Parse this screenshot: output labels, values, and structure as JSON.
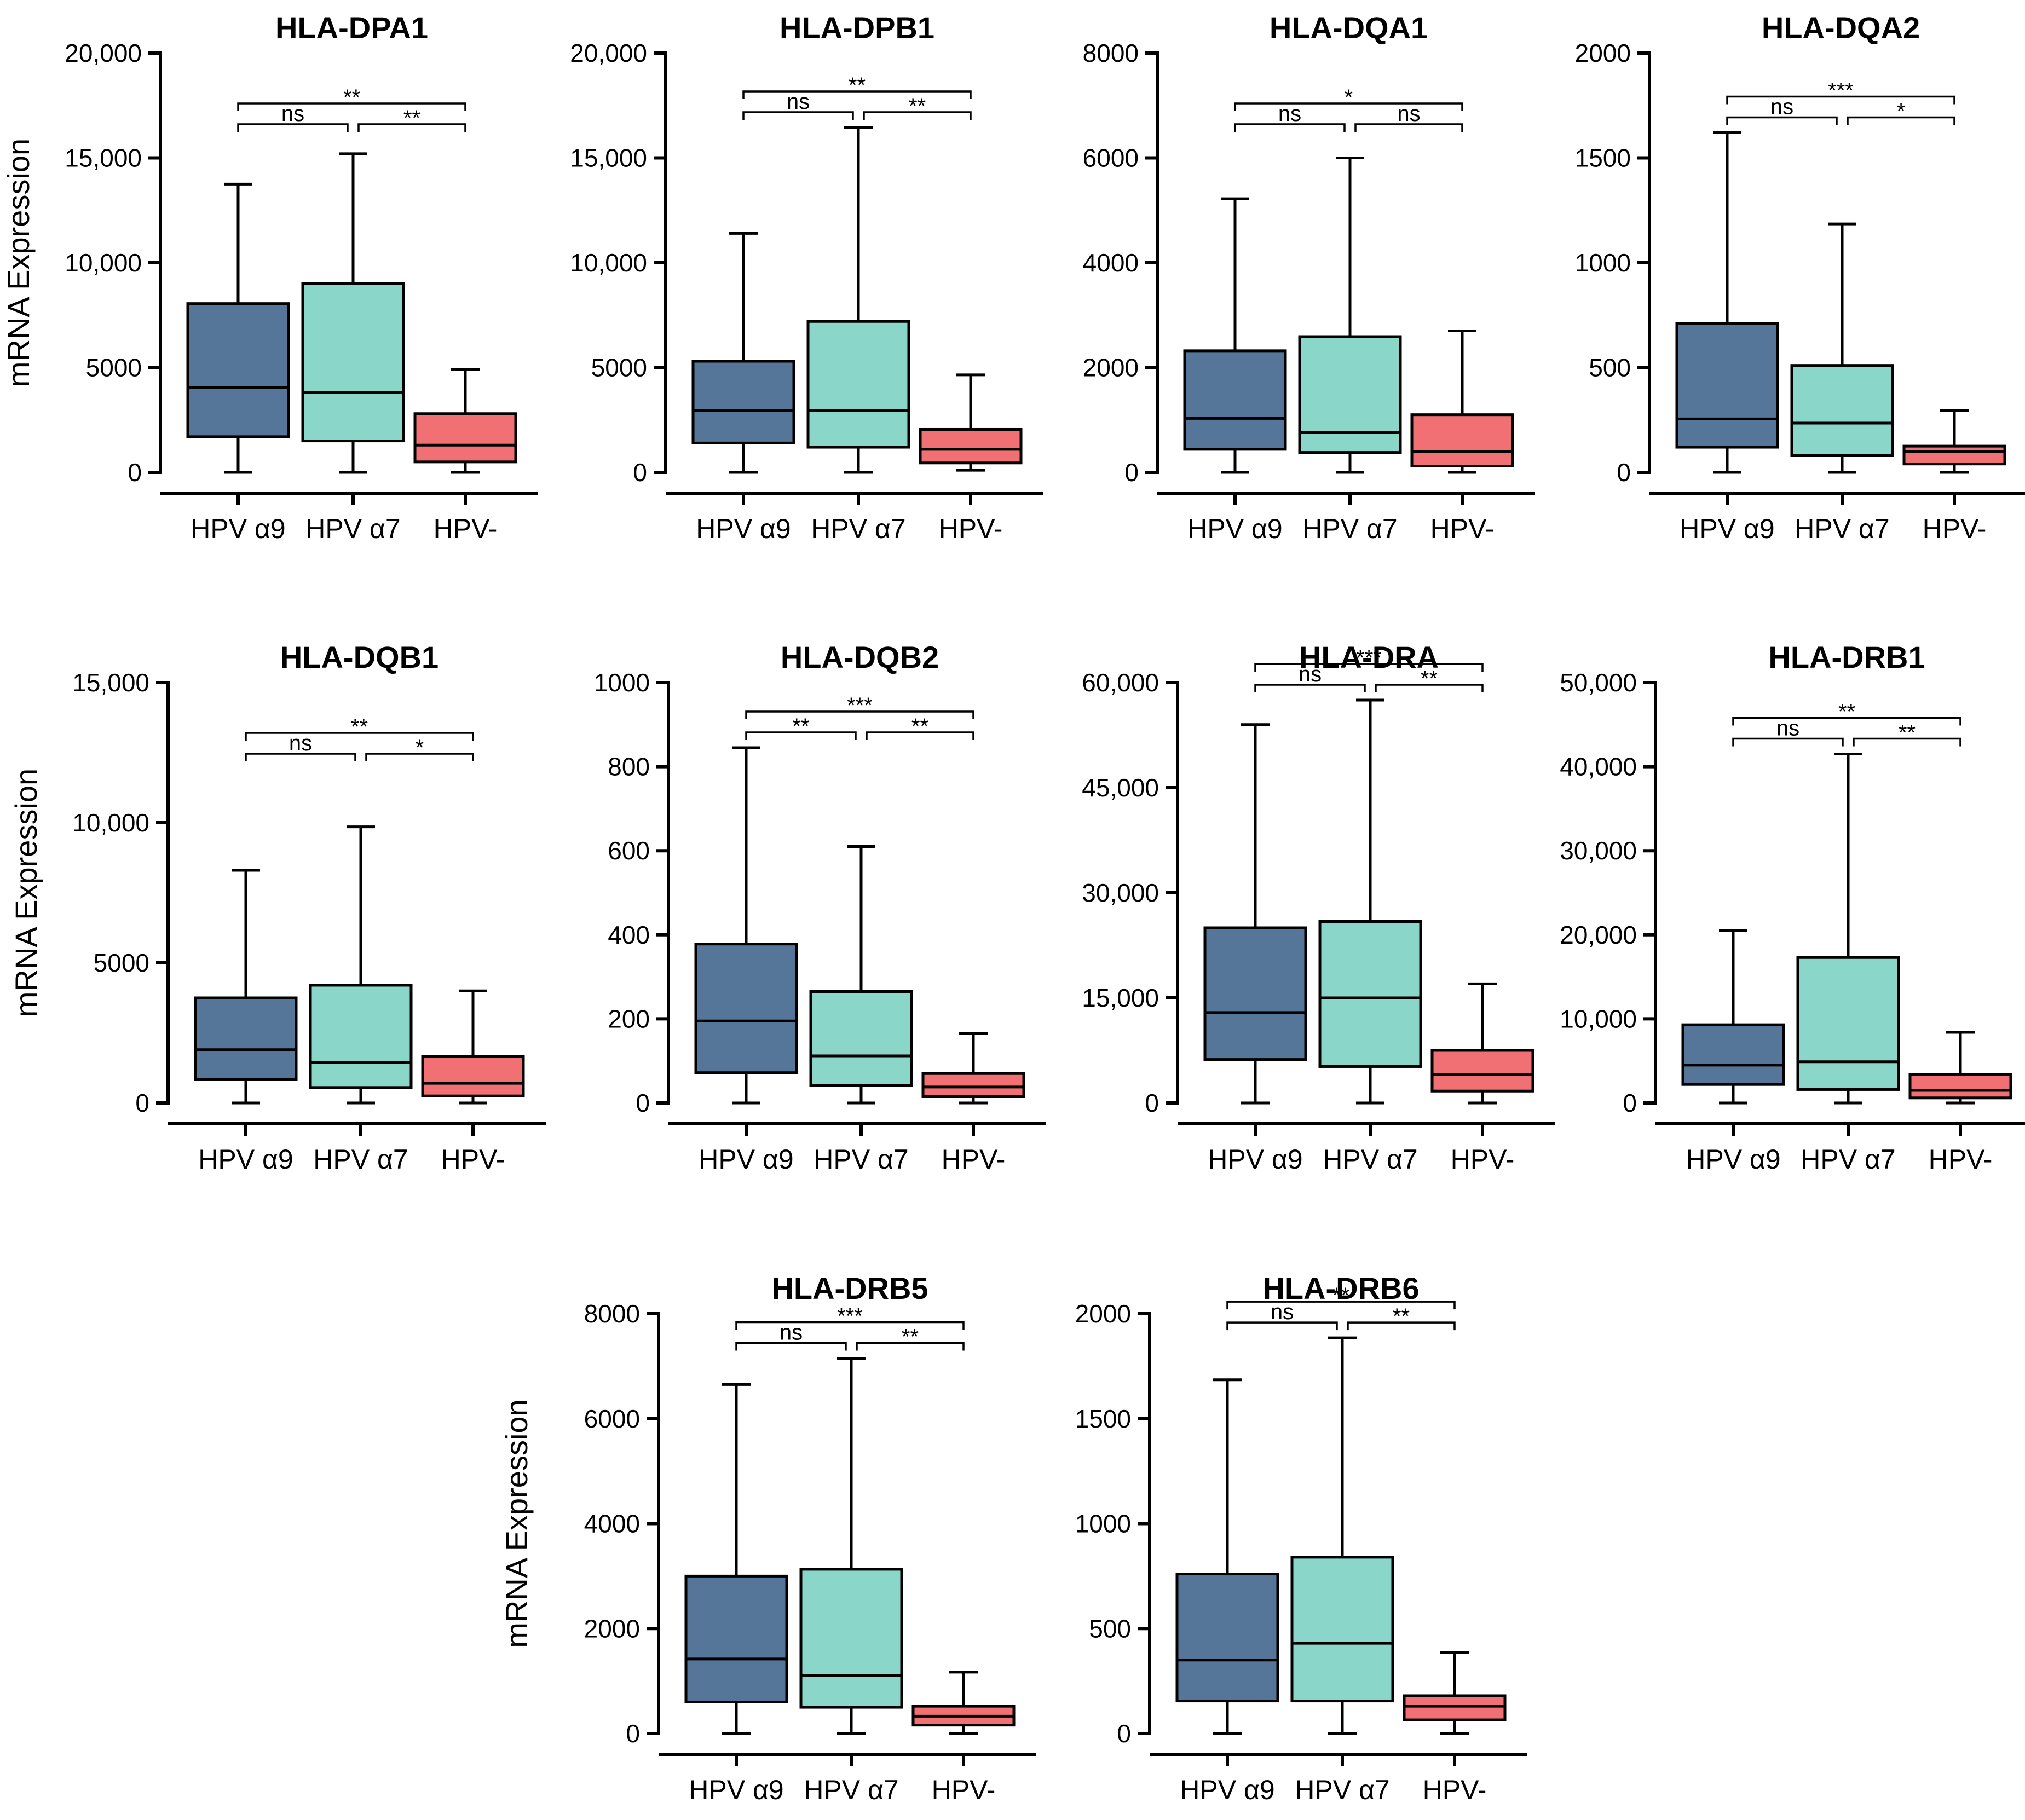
{
  "figure": {
    "ylabel": "mRNA Expression",
    "colors": {
      "HPV α9": "#557699",
      "HPV α7": "#8ad6c8",
      "HPV-": "#f07074"
    }
  },
  "chart_data": [
    {
      "type": "box",
      "title": "HLA-DPA1",
      "ylabel": "mRNA Expression",
      "categories": [
        "HPV α9",
        "HPV α7",
        "HPV-"
      ],
      "ylim": [
        0,
        20000
      ],
      "yticks": [
        0,
        5000,
        10000,
        15000,
        20000
      ],
      "ytick_labels": [
        "0",
        "5000",
        "10,000",
        "15,000",
        "20,000"
      ],
      "boxes": [
        {
          "min": 0,
          "q1": 1700,
          "median": 4050,
          "q3": 8050,
          "max": 13750
        },
        {
          "min": 0,
          "q1": 1500,
          "median": 3800,
          "q3": 9000,
          "max": 15200
        },
        {
          "min": 0,
          "q1": 500,
          "median": 1300,
          "q3": 2800,
          "max": 4900
        }
      ],
      "brackets": [
        {
          "from": 0,
          "to": 1,
          "label": "ns",
          "level": 0
        },
        {
          "from": 1,
          "to": 2,
          "label": "**",
          "level": 0
        },
        {
          "from": 0,
          "to": 2,
          "label": "**",
          "level": 1
        }
      ]
    },
    {
      "type": "box",
      "title": "HLA-DPB1",
      "ylabel": "",
      "categories": [
        "HPV α9",
        "HPV α7",
        "HPV-"
      ],
      "ylim": [
        0,
        20000
      ],
      "yticks": [
        0,
        5000,
        10000,
        15000,
        20000
      ],
      "ytick_labels": [
        "0",
        "5000",
        "10,000",
        "15,000",
        "20,000"
      ],
      "boxes": [
        {
          "min": 0,
          "q1": 1400,
          "median": 2950,
          "q3": 5300,
          "max": 11400
        },
        {
          "min": 0,
          "q1": 1200,
          "median": 2950,
          "q3": 7200,
          "max": 16450
        },
        {
          "min": 100,
          "q1": 450,
          "median": 1100,
          "q3": 2050,
          "max": 4650
        }
      ],
      "brackets": [
        {
          "from": 0,
          "to": 1,
          "label": "ns",
          "level": 0
        },
        {
          "from": 1,
          "to": 2,
          "label": "**",
          "level": 0
        },
        {
          "from": 0,
          "to": 2,
          "label": "**",
          "level": 1
        }
      ]
    },
    {
      "type": "box",
      "title": "HLA-DQA1",
      "ylabel": "",
      "categories": [
        "HPV α9",
        "HPV α7",
        "HPV-"
      ],
      "ylim": [
        0,
        8000
      ],
      "yticks": [
        0,
        2000,
        4000,
        6000,
        8000
      ],
      "ytick_labels": [
        "0",
        "2000",
        "4000",
        "6000",
        "8000"
      ],
      "boxes": [
        {
          "min": 0,
          "q1": 440,
          "median": 1030,
          "q3": 2320,
          "max": 5220
        },
        {
          "min": 0,
          "q1": 380,
          "median": 760,
          "q3": 2590,
          "max": 6000
        },
        {
          "min": 0,
          "q1": 120,
          "median": 400,
          "q3": 1100,
          "max": 2700
        }
      ],
      "brackets": [
        {
          "from": 0,
          "to": 1,
          "label": "ns",
          "level": 0
        },
        {
          "from": 1,
          "to": 2,
          "label": "ns",
          "level": 0
        },
        {
          "from": 0,
          "to": 2,
          "label": "*",
          "level": 1
        }
      ]
    },
    {
      "type": "box",
      "title": "HLA-DQA2",
      "ylabel": "",
      "categories": [
        "HPV α9",
        "HPV α7",
        "HPV-"
      ],
      "ylim": [
        0,
        2000
      ],
      "yticks": [
        0,
        500,
        1000,
        1500,
        2000
      ],
      "ytick_labels": [
        "0",
        "500",
        "1000",
        "1500",
        "2000"
      ],
      "boxes": [
        {
          "min": 0,
          "q1": 120,
          "median": 255,
          "q3": 710,
          "max": 1620
        },
        {
          "min": 0,
          "q1": 80,
          "median": 235,
          "q3": 510,
          "max": 1185
        },
        {
          "min": 0,
          "q1": 40,
          "median": 100,
          "q3": 125,
          "max": 295
        }
      ],
      "brackets": [
        {
          "from": 0,
          "to": 1,
          "label": "ns",
          "level": 0
        },
        {
          "from": 1,
          "to": 2,
          "label": "*",
          "level": 0
        },
        {
          "from": 0,
          "to": 2,
          "label": "***",
          "level": 1
        }
      ]
    },
    {
      "type": "box",
      "title": "HLA-DQB1",
      "ylabel": "mRNA Expression",
      "categories": [
        "HPV α9",
        "HPV α7",
        "HPV-"
      ],
      "ylim": [
        0,
        15000
      ],
      "yticks": [
        0,
        5000,
        10000,
        15000
      ],
      "ytick_labels": [
        "0",
        "5000",
        "10,000",
        "15,000"
      ],
      "boxes": [
        {
          "min": 0,
          "q1": 850,
          "median": 1900,
          "q3": 3750,
          "max": 8300
        },
        {
          "min": 0,
          "q1": 550,
          "median": 1450,
          "q3": 4200,
          "max": 9850
        },
        {
          "min": 0,
          "q1": 250,
          "median": 700,
          "q3": 1650,
          "max": 4000
        }
      ],
      "brackets": [
        {
          "from": 0,
          "to": 1,
          "label": "ns",
          "level": 0
        },
        {
          "from": 1,
          "to": 2,
          "label": "*",
          "level": 0
        },
        {
          "from": 0,
          "to": 2,
          "label": "**",
          "level": 1
        }
      ]
    },
    {
      "type": "box",
      "title": "HLA-DQB2",
      "ylabel": "",
      "categories": [
        "HPV α9",
        "HPV α7",
        "HPV-"
      ],
      "ylim": [
        0,
        1000
      ],
      "yticks": [
        0,
        200,
        400,
        600,
        800,
        1000
      ],
      "ytick_labels": [
        "0",
        "200",
        "400",
        "600",
        "800",
        "1000"
      ],
      "boxes": [
        {
          "min": 0,
          "q1": 72,
          "median": 195,
          "q3": 378,
          "max": 845
        },
        {
          "min": 0,
          "q1": 42,
          "median": 112,
          "q3": 265,
          "max": 610
        },
        {
          "min": 0,
          "q1": 15,
          "median": 38,
          "q3": 70,
          "max": 165
        }
      ],
      "brackets": [
        {
          "from": 0,
          "to": 1,
          "label": "**",
          "level": 0
        },
        {
          "from": 1,
          "to": 2,
          "label": "**",
          "level": 0
        },
        {
          "from": 0,
          "to": 2,
          "label": "***",
          "level": 1
        }
      ]
    },
    {
      "type": "box",
      "title": "HLA-DRA",
      "ylabel": "",
      "categories": [
        "HPV α9",
        "HPV α7",
        "HPV-"
      ],
      "ylim": [
        0,
        60000
      ],
      "yticks": [
        0,
        15000,
        30000,
        45000,
        60000
      ],
      "ytick_labels": [
        "0",
        "15,000",
        "30,000",
        "45,000",
        "60,000"
      ],
      "boxes": [
        {
          "min": 0,
          "q1": 6200,
          "median": 12900,
          "q3": 25000,
          "max": 54000
        },
        {
          "min": 0,
          "q1": 5200,
          "median": 15000,
          "q3": 25900,
          "max": 57500
        },
        {
          "min": 0,
          "q1": 1700,
          "median": 4100,
          "q3": 7500,
          "max": 17000
        }
      ],
      "brackets": [
        {
          "from": 0,
          "to": 1,
          "label": "ns",
          "level": 0
        },
        {
          "from": 1,
          "to": 2,
          "label": "**",
          "level": 0
        },
        {
          "from": 0,
          "to": 2,
          "label": "***",
          "level": 1
        }
      ]
    },
    {
      "type": "box",
      "title": "HLA-DRB1",
      "ylabel": "",
      "categories": [
        "HPV α9",
        "HPV α7",
        "HPV-"
      ],
      "ylim": [
        0,
        50000
      ],
      "yticks": [
        0,
        10000,
        20000,
        30000,
        40000,
        50000
      ],
      "ytick_labels": [
        "0",
        "10,000",
        "20,000",
        "30,000",
        "40,000",
        "50,000"
      ],
      "boxes": [
        {
          "min": 0,
          "q1": 2200,
          "median": 4500,
          "q3": 9300,
          "max": 20500
        },
        {
          "min": 0,
          "q1": 1600,
          "median": 4900,
          "q3": 17300,
          "max": 41500
        },
        {
          "min": 0,
          "q1": 600,
          "median": 1500,
          "q3": 3400,
          "max": 8400
        }
      ],
      "brackets": [
        {
          "from": 0,
          "to": 1,
          "label": "ns",
          "level": 0
        },
        {
          "from": 1,
          "to": 2,
          "label": "**",
          "level": 0
        },
        {
          "from": 0,
          "to": 2,
          "label": "**",
          "level": 1
        }
      ]
    },
    {
      "type": "box",
      "title": "HLA-DRB5",
      "ylabel": "mRNA Expression",
      "categories": [
        "HPV α9",
        "HPV α7",
        "HPV-"
      ],
      "ylim": [
        0,
        8000
      ],
      "yticks": [
        0,
        2000,
        4000,
        6000,
        8000
      ],
      "ytick_labels": [
        "0",
        "2000",
        "4000",
        "6000",
        "8000"
      ],
      "boxes": [
        {
          "min": 0,
          "q1": 600,
          "median": 1420,
          "q3": 3000,
          "max": 6650
        },
        {
          "min": 0,
          "q1": 500,
          "median": 1100,
          "q3": 3130,
          "max": 7150
        },
        {
          "min": 0,
          "q1": 160,
          "median": 330,
          "q3": 520,
          "max": 1170
        }
      ],
      "brackets": [
        {
          "from": 0,
          "to": 1,
          "label": "ns",
          "level": 0
        },
        {
          "from": 1,
          "to": 2,
          "label": "**",
          "level": 0
        },
        {
          "from": 0,
          "to": 2,
          "label": "***",
          "level": 1
        }
      ]
    },
    {
      "type": "box",
      "title": "HLA-DRB6",
      "ylabel": "",
      "categories": [
        "HPV α9",
        "HPV α7",
        "HPV-"
      ],
      "ylim": [
        0,
        2000
      ],
      "yticks": [
        0,
        500,
        1000,
        1500,
        2000
      ],
      "ytick_labels": [
        "0",
        "500",
        "1000",
        "1500",
        "2000"
      ],
      "boxes": [
        {
          "min": 0,
          "q1": 155,
          "median": 350,
          "q3": 760,
          "max": 1685
        },
        {
          "min": 0,
          "q1": 155,
          "median": 430,
          "q3": 840,
          "max": 1885
        },
        {
          "min": 0,
          "q1": 65,
          "median": 130,
          "q3": 180,
          "max": 385
        }
      ],
      "brackets": [
        {
          "from": 0,
          "to": 1,
          "label": "ns",
          "level": 0
        },
        {
          "from": 1,
          "to": 2,
          "label": "**",
          "level": 0
        },
        {
          "from": 0,
          "to": 2,
          "label": "**",
          "level": 1
        }
      ]
    }
  ]
}
